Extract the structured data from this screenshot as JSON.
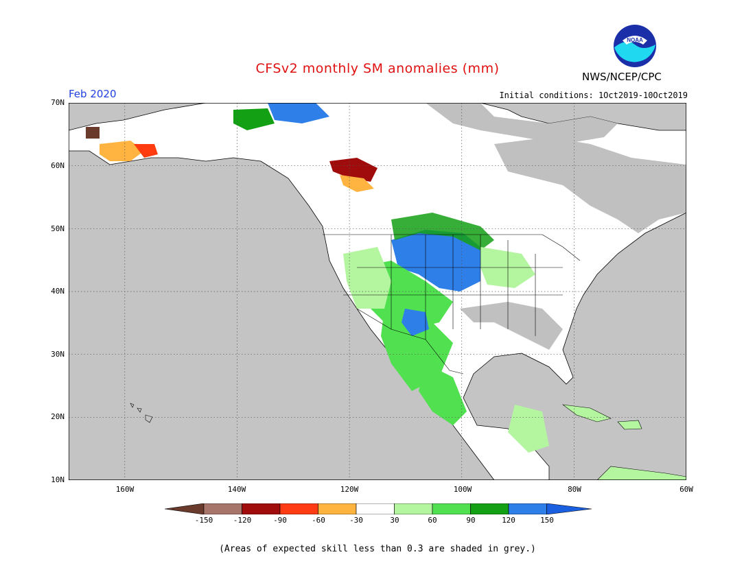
{
  "title": "CFSv2 monthly SM anomalies (mm)",
  "agency": "NWS/NCEP/CPC",
  "logo_text": "NOAA",
  "valid_month": "Feb 2020",
  "initial_conditions": "Initial conditions: 1Oct2019-10Oct2019",
  "note": "(Areas of expected skill less than 0.3 are shaded in grey.)",
  "map": {
    "lon_range": [
      -170,
      -60
    ],
    "lat_range": [
      10,
      70
    ],
    "lat_labels": [
      "70N",
      "60N",
      "50N",
      "40N",
      "30N",
      "20N",
      "10N"
    ],
    "lon_labels": [
      "160W",
      "140W",
      "120W",
      "100W",
      "80W",
      "60W"
    ],
    "colors": {
      "grey": "#c0c0c0",
      "ocean_grey": "#c4c4c4",
      "white": "#ffffff",
      "lightgreen": "#b4f5a0",
      "green": "#50e050",
      "darkgreen": "#14a014",
      "blue": "#2f7fe8",
      "orange": "#ffb340",
      "red": "#ff3c10",
      "darkred": "#a01010",
      "brown": "#6a3b2c"
    }
  },
  "colorbar": {
    "labels": [
      "-150",
      "-120",
      "-90",
      "-60",
      "-30",
      "30",
      "60",
      "90",
      "120",
      "150"
    ],
    "colors": [
      "#6a3b2c",
      "#a8756a",
      "#a00c0c",
      "#ff3c14",
      "#ffb440",
      "#ffffff",
      "#b4f5a0",
      "#50e050",
      "#14a014",
      "#2f7fe8",
      "#1a5fe0"
    ]
  }
}
